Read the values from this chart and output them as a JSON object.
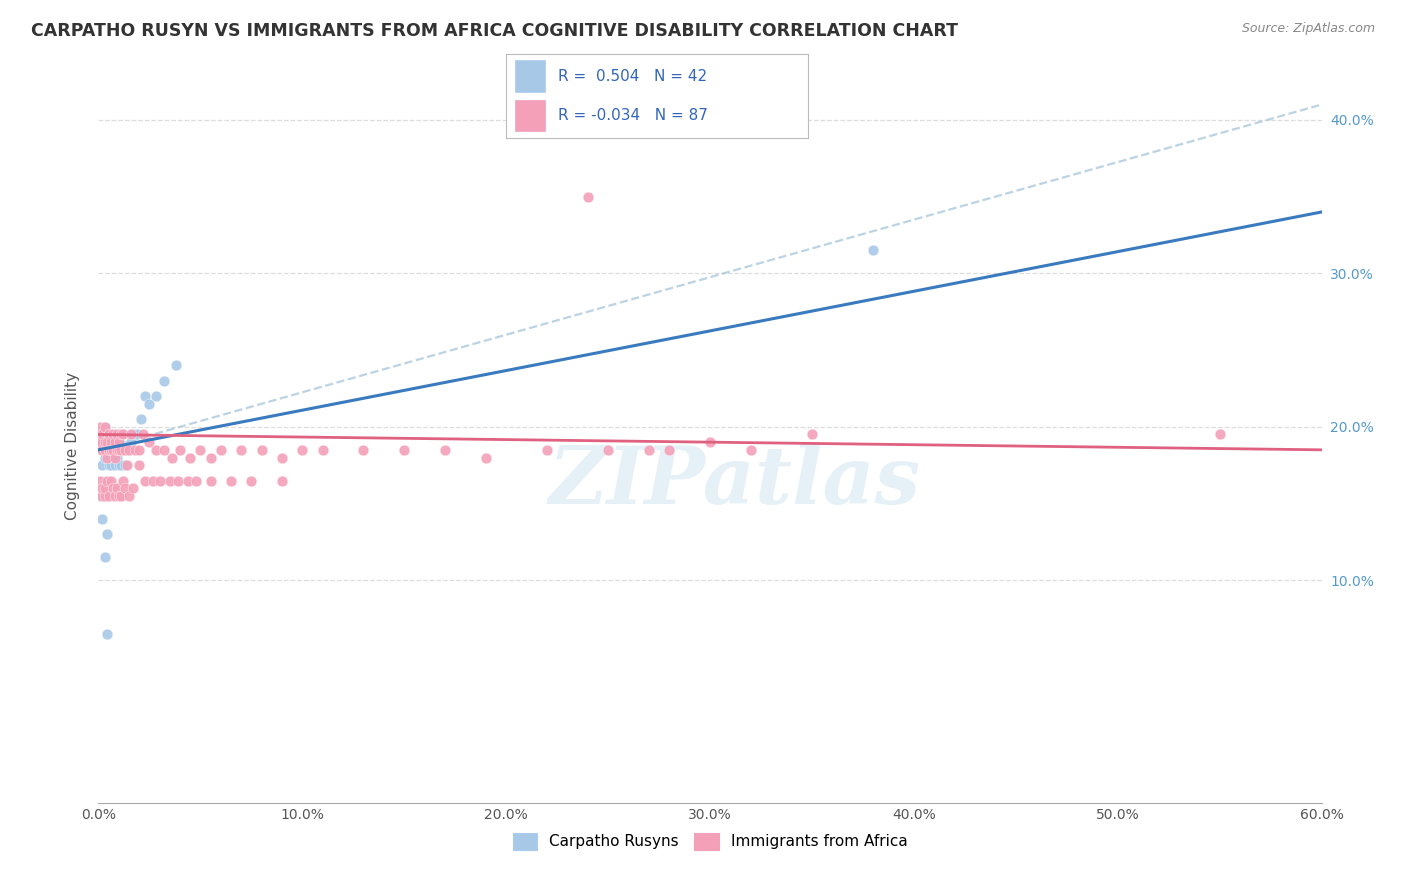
{
  "title": "CARPATHO RUSYN VS IMMIGRANTS FROM AFRICA COGNITIVE DISABILITY CORRELATION CHART",
  "source": "Source: ZipAtlas.com",
  "ylabel": "Cognitive Disability",
  "legend_label1": "Carpatho Rusyns",
  "legend_label2": "Immigrants from Africa",
  "color_blue": "#a8c8e8",
  "color_pink": "#f4a0b8",
  "color_blue_line": "#3a7abf",
  "color_pink_line": "#e06080",
  "color_dashed": "#b0ccdd",
  "watermark": "ZIPatlas",
  "xlim": [
    0.0,
    0.6
  ],
  "ylim": [
    -0.045,
    0.42
  ],
  "x_ticks": [
    0.0,
    0.1,
    0.2,
    0.3,
    0.4,
    0.5,
    0.6
  ],
  "y_ticks": [
    0.1,
    0.2,
    0.3,
    0.4
  ],
  "background_color": "#ffffff",
  "grid_color": "#dddddd",
  "blue_trend": [
    0.0,
    0.6,
    0.185,
    0.34
  ],
  "pink_trend": [
    0.0,
    0.6,
    0.195,
    0.185
  ],
  "dashed_trend": [
    0.0,
    0.6,
    0.185,
    0.41
  ],
  "blue_x": [
    0.001,
    0.002,
    0.002,
    0.003,
    0.003,
    0.003,
    0.004,
    0.004,
    0.005,
    0.005,
    0.005,
    0.006,
    0.006,
    0.007,
    0.007,
    0.008,
    0.008,
    0.009,
    0.009,
    0.01,
    0.01,
    0.011,
    0.011,
    0.012,
    0.013,
    0.014,
    0.015,
    0.016,
    0.017,
    0.019,
    0.021,
    0.023,
    0.025,
    0.028,
    0.032,
    0.038,
    0.001,
    0.002,
    0.003,
    0.004,
    0.38,
    0.004
  ],
  "blue_y": [
    0.19,
    0.185,
    0.175,
    0.2,
    0.19,
    0.18,
    0.195,
    0.185,
    0.19,
    0.18,
    0.175,
    0.185,
    0.175,
    0.19,
    0.18,
    0.185,
    0.175,
    0.19,
    0.18,
    0.19,
    0.175,
    0.185,
    0.175,
    0.185,
    0.175,
    0.185,
    0.185,
    0.19,
    0.195,
    0.195,
    0.205,
    0.22,
    0.215,
    0.22,
    0.23,
    0.24,
    0.155,
    0.14,
    0.115,
    0.13,
    0.315,
    0.065
  ],
  "pink_x": [
    0.001,
    0.001,
    0.002,
    0.002,
    0.003,
    0.003,
    0.003,
    0.004,
    0.004,
    0.005,
    0.005,
    0.006,
    0.006,
    0.007,
    0.007,
    0.008,
    0.008,
    0.009,
    0.009,
    0.01,
    0.01,
    0.011,
    0.011,
    0.012,
    0.013,
    0.014,
    0.015,
    0.016,
    0.018,
    0.02,
    0.022,
    0.025,
    0.028,
    0.032,
    0.036,
    0.04,
    0.045,
    0.05,
    0.055,
    0.06,
    0.07,
    0.08,
    0.09,
    0.1,
    0.11,
    0.13,
    0.15,
    0.17,
    0.19,
    0.22,
    0.25,
    0.28,
    0.32,
    0.001,
    0.002,
    0.002,
    0.003,
    0.003,
    0.004,
    0.005,
    0.006,
    0.007,
    0.008,
    0.009,
    0.01,
    0.011,
    0.012,
    0.013,
    0.015,
    0.017,
    0.02,
    0.023,
    0.027,
    0.03,
    0.035,
    0.039,
    0.044,
    0.048,
    0.055,
    0.065,
    0.075,
    0.09,
    0.55,
    0.35,
    0.3,
    0.27,
    0.24
  ],
  "pink_y": [
    0.19,
    0.2,
    0.185,
    0.195,
    0.185,
    0.2,
    0.19,
    0.19,
    0.18,
    0.195,
    0.185,
    0.19,
    0.185,
    0.195,
    0.185,
    0.19,
    0.18,
    0.195,
    0.185,
    0.19,
    0.185,
    0.195,
    0.185,
    0.195,
    0.185,
    0.175,
    0.185,
    0.195,
    0.185,
    0.185,
    0.195,
    0.19,
    0.185,
    0.185,
    0.18,
    0.185,
    0.18,
    0.185,
    0.18,
    0.185,
    0.185,
    0.185,
    0.18,
    0.185,
    0.185,
    0.185,
    0.185,
    0.185,
    0.18,
    0.185,
    0.185,
    0.185,
    0.185,
    0.165,
    0.155,
    0.16,
    0.155,
    0.16,
    0.165,
    0.155,
    0.165,
    0.16,
    0.155,
    0.16,
    0.155,
    0.155,
    0.165,
    0.16,
    0.155,
    0.16,
    0.175,
    0.165,
    0.165,
    0.165,
    0.165,
    0.165,
    0.165,
    0.165,
    0.165,
    0.165,
    0.165,
    0.165,
    0.195,
    0.195,
    0.19,
    0.185,
    0.35
  ]
}
